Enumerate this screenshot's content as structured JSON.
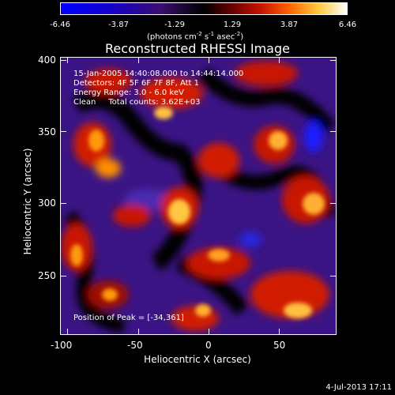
{
  "window": {
    "title": "Reconstructed RHESSI Image",
    "timestamp": "4-Jul-2013 17:11"
  },
  "colorbar": {
    "ticks": [
      "-6.46",
      "-3.87",
      "-1.29",
      "1.29",
      "3.87",
      "6.46"
    ],
    "units_prefix": "(photons cm",
    "units_exp1": "-2",
    "units_mid": " s",
    "units_exp2": "-1",
    "units_mid2": " asec",
    "units_exp3": "-2",
    "units_suffix": ")",
    "colors": [
      "#0000ff",
      "#1a00b0",
      "#2e0a6a",
      "#000000",
      "#7a0000",
      "#d42800",
      "#ff8a00",
      "#ffd84a",
      "#ffffff"
    ]
  },
  "info": {
    "line1": "15-Jan-2005 14:40:08.000 to 14:44:14.000",
    "line2": "Detectors: 4F 5F 6F 7F 8F, Att 1",
    "line3": "Energy Range: 3.0 - 6.0 keV",
    "line4": "Clean     Total counts: 3.62E+03",
    "peak": "Position of Peak = [-34,361]"
  },
  "axes": {
    "xlabel": "Heliocentric X (arcsec)",
    "ylabel": "Heliocentric Y (arcsec)",
    "xticks": [
      "-100",
      "-50",
      "0",
      "50"
    ],
    "yticks": [
      "400",
      "350",
      "300",
      "250"
    ],
    "xrange": [
      -105,
      89
    ],
    "yrange": [
      205,
      401
    ]
  }
}
